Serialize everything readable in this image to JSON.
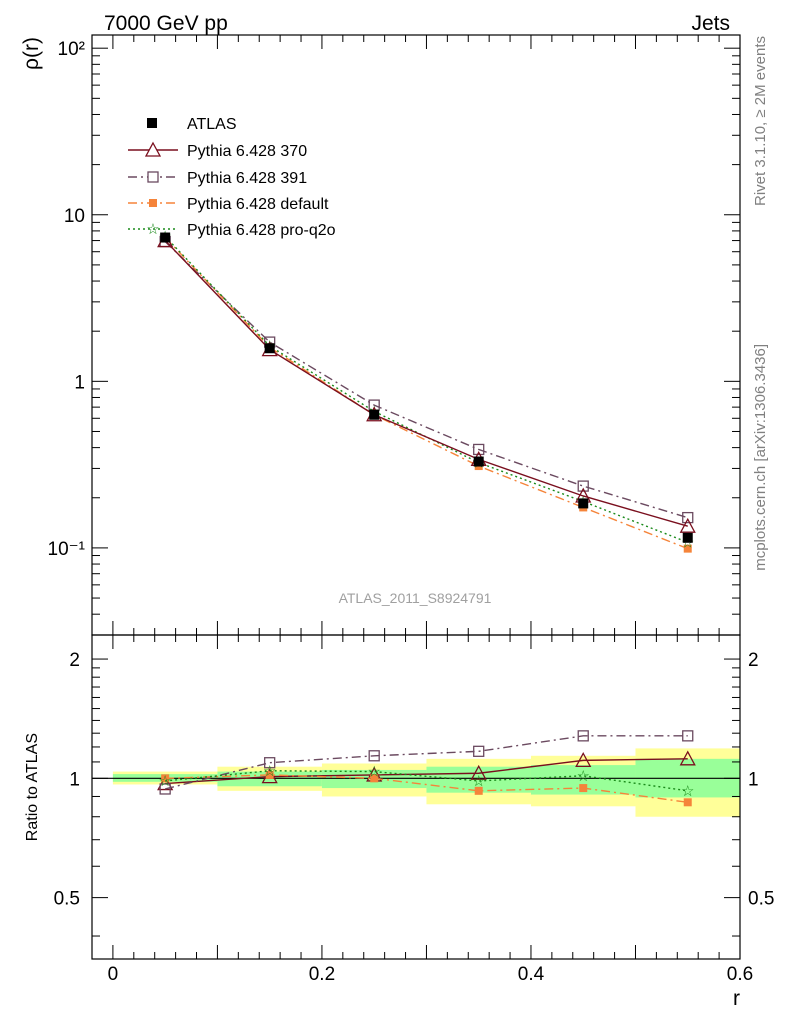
{
  "header": {
    "left": "7000 GeV pp",
    "right": "Jets"
  },
  "side_labels": {
    "rivet": "Rivet 3.1.10, ≥ 2M events",
    "mcplots": "mcplots.cern.ch [arXiv:1306.3436]"
  },
  "analysis_label": "ATLAS_2011_S8924791",
  "colors": {
    "atlas": "#000000",
    "p370": "#7a0f1e",
    "p391": "#6b4a60",
    "pdefault": "#f5843a",
    "pq2o": "#1a8a1a",
    "band_yellow": "#ffff99",
    "band_green": "#99ff99"
  },
  "chart_data": [
    {
      "type": "line",
      "panel": "main",
      "ylabel": "ρ(r)",
      "xlabel": "r",
      "yscale": "log",
      "ylim": [
        0.03,
        120
      ],
      "xlim": [
        -0.02,
        0.6
      ],
      "yticklabels": [
        "10⁻¹",
        "1",
        "10",
        "10²"
      ],
      "x": [
        0.05,
        0.15,
        0.25,
        0.35,
        0.45,
        0.55
      ],
      "series": [
        {
          "name": "ATLAS",
          "key": "atlas",
          "marker": "filled-square",
          "dash": "",
          "values": [
            7.3,
            1.58,
            0.63,
            0.33,
            0.185,
            0.115
          ]
        },
        {
          "name": "Pythia 6.428 370",
          "key": "p370",
          "marker": "open-triangle",
          "dash": "",
          "values": [
            7.0,
            1.55,
            0.63,
            0.34,
            0.205,
            0.135
          ]
        },
        {
          "name": "Pythia 6.428 391",
          "key": "p391",
          "marker": "open-square",
          "dash": "9,4,2,4",
          "values": [
            6.9,
            1.72,
            0.72,
            0.39,
            0.235,
            0.152
          ]
        },
        {
          "name": "Pythia 6.428 default",
          "key": "pdefault",
          "marker": "filled-small-square",
          "dash": "9,4,2,4",
          "values": [
            7.3,
            1.6,
            0.63,
            0.31,
            0.175,
            0.099
          ]
        },
        {
          "name": "Pythia 6.428 pro-q2o",
          "key": "pq2o",
          "marker": "star",
          "dash": "2,3",
          "values": [
            7.4,
            1.63,
            0.66,
            0.325,
            0.19,
            0.108
          ]
        }
      ]
    },
    {
      "type": "line",
      "panel": "ratio",
      "ylabel": "Ratio to ATLAS",
      "xlabel": "r",
      "ylim": [
        0.35,
        2.3
      ],
      "xlim": [
        -0.02,
        0.6
      ],
      "yticklabels": [
        "0.5",
        "1",
        "2"
      ],
      "xticklabels": [
        "0",
        "0.2",
        "0.4",
        "0.6"
      ],
      "bins": [
        [
          0.0,
          0.1
        ],
        [
          0.1,
          0.2
        ],
        [
          0.2,
          0.3
        ],
        [
          0.3,
          0.4
        ],
        [
          0.4,
          0.5
        ],
        [
          0.5,
          0.6
        ]
      ],
      "band_yellow": [
        [
          0.965,
          1.04
        ],
        [
          0.93,
          1.07
        ],
        [
          0.9,
          1.09
        ],
        [
          0.86,
          1.12
        ],
        [
          0.85,
          1.14
        ],
        [
          0.8,
          1.19
        ]
      ],
      "band_green": [
        [
          0.98,
          1.025
        ],
        [
          0.955,
          1.04
        ],
        [
          0.945,
          1.05
        ],
        [
          0.92,
          1.07
        ],
        [
          0.91,
          1.08
        ],
        [
          0.895,
          1.12
        ]
      ],
      "x": [
        0.05,
        0.15,
        0.25,
        0.35,
        0.45,
        0.55
      ],
      "series": [
        {
          "name": "Pythia 6.428 370",
          "key": "p370",
          "values": [
            0.97,
            1.01,
            1.02,
            1.03,
            1.11,
            1.12
          ]
        },
        {
          "name": "Pythia 6.428 391",
          "key": "p391",
          "values": [
            0.94,
            1.095,
            1.14,
            1.17,
            1.28,
            1.28
          ]
        },
        {
          "name": "Pythia 6.428 default",
          "key": "pdefault",
          "values": [
            1.0,
            1.02,
            1.0,
            0.93,
            0.945,
            0.87
          ]
        },
        {
          "name": "Pythia 6.428 pro-q2o",
          "key": "pq2o",
          "values": [
            0.985,
            1.045,
            1.04,
            0.985,
            1.015,
            0.93
          ]
        }
      ]
    }
  ]
}
